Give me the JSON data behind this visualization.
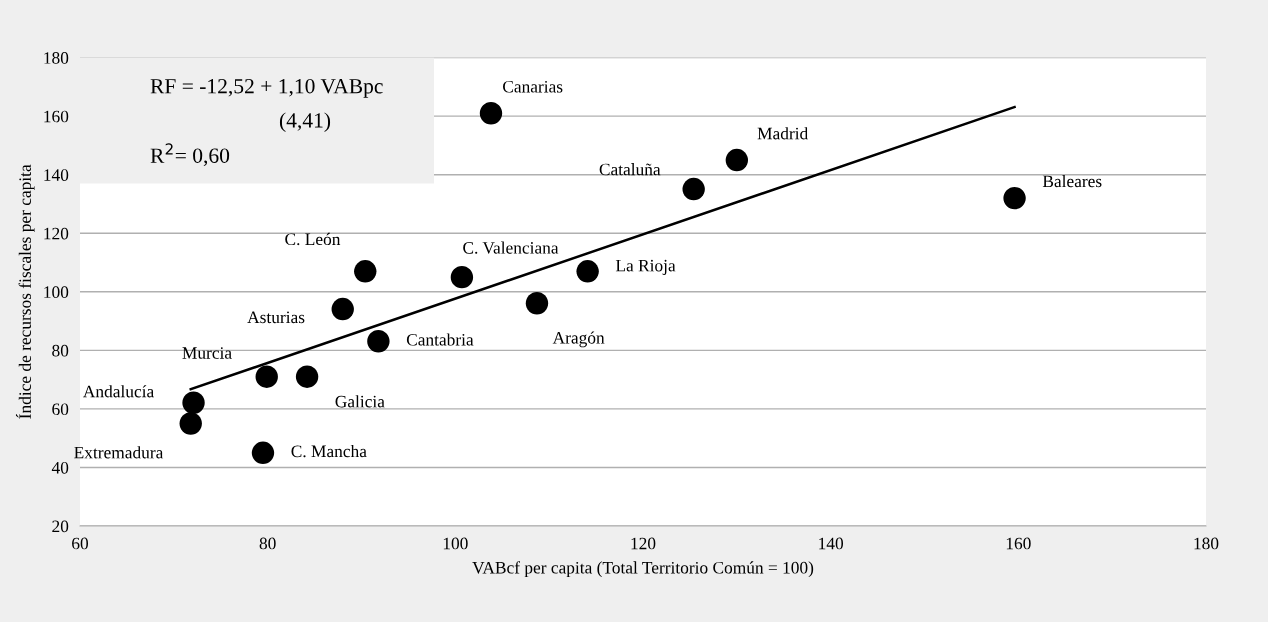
{
  "chart_data": {
    "type": "scatter",
    "xlabel": "VABcf per capita (Total Territorio Común = 100)",
    "ylabel": "Índice de recursos fiscales per capita",
    "xlim": [
      60,
      180
    ],
    "xticks": [
      60,
      80,
      100,
      120,
      140,
      160,
      180
    ],
    "ylim": [
      20,
      180
    ],
    "yticks": [
      20,
      40,
      60,
      80,
      100,
      120,
      140,
      160,
      180
    ],
    "grid": "y",
    "legend": false,
    "marker": "circle",
    "series": [
      {
        "color": "#000000",
        "x": [
          103.8,
          90.4,
          100.7,
          108.7,
          114.1,
          88.0,
          91.8,
          79.9,
          84.2,
          72.1,
          71.8,
          79.5,
          130.0,
          125.4,
          159.6
        ],
        "values": [
          161,
          107,
          105,
          96.1,
          107,
          94.1,
          83.1,
          71,
          71,
          62.1,
          55,
          45,
          145,
          135.1,
          132
        ]
      },
      {
        "type": "line",
        "color": "#000000",
        "marker": "none",
        "line_style": "solid",
        "x": [
          71.8,
          159.6
        ],
        "values": [
          66.7,
          163.1
        ]
      }
    ],
    "annotations": [
      {
        "text": "Canarias",
        "x": 103.8,
        "y": 161
      },
      {
        "text": "C. León",
        "x": 90.4,
        "y": 107
      },
      {
        "text": "C. Valenciana",
        "x": 100.7,
        "y": 105
      },
      {
        "text": "Aragón",
        "x": 108.7,
        "y": 96.1
      },
      {
        "text": "La Rioja",
        "x": 114.1,
        "y": 107
      },
      {
        "text": "Asturias",
        "x": 88.0,
        "y": 94.1
      },
      {
        "text": "Cantabria",
        "x": 91.8,
        "y": 83.1
      },
      {
        "text": "Murcia",
        "x": 79.9,
        "y": 71
      },
      {
        "text": "Galicia",
        "x": 84.2,
        "y": 71
      },
      {
        "text": "Andalucía",
        "x": 72.1,
        "y": 62.1
      },
      {
        "text": "Extremadura",
        "x": 71.8,
        "y": 55
      },
      {
        "text": "C. Mancha",
        "x": 79.5,
        "y": 45
      },
      {
        "text": "Madrid",
        "x": 130.0,
        "y": 145
      },
      {
        "text": "Cataluña",
        "x": 125.4,
        "y": 135.1
      },
      {
        "text": "Baleares",
        "x": 159.6,
        "y": 132
      },
      "RF = -12,52 + 1,10 VABpc",
      "(4,41)",
      "R$^{2}$= 0,60"
    ]
  }
}
